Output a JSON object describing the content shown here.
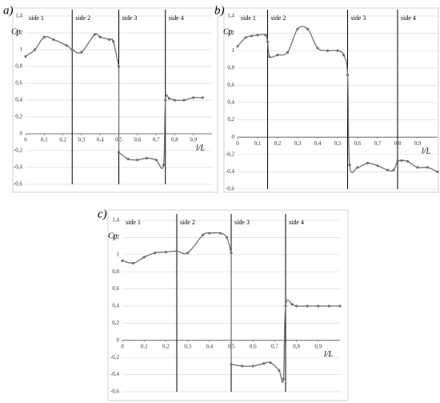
{
  "chart_data": [
    {
      "type": "line",
      "label": "a)",
      "y_label": "Cp",
      "x_label": "l/L",
      "xlim": [
        0,
        1
      ],
      "ylim": [
        -0.6,
        1.4
      ],
      "xticks": [
        0,
        {
          "value": 0.1,
          "label": "0,1"
        },
        {
          "value": 0.2,
          "label": "0,2"
        },
        {
          "value": 0.3,
          "label": "0,3"
        },
        {
          "value": 0.4,
          "label": "0,4"
        },
        {
          "value": 0.5,
          "label": "0,5"
        },
        {
          "value": 0.6,
          "label": "0,6"
        },
        {
          "value": 0.7,
          "label": "0,7"
        },
        {
          "value": 0.8,
          "label": "0,8"
        },
        {
          "value": 0.9,
          "label": "0,9"
        }
      ],
      "yticks": [
        {
          "value": -0.6,
          "label": "-0,6"
        },
        {
          "value": -0.4,
          "label": "-0,4"
        },
        {
          "value": -0.2,
          "label": "-0,2"
        },
        0,
        {
          "value": 0.2,
          "label": "0,2"
        },
        {
          "value": 0.4,
          "label": "0,4"
        },
        {
          "value": 0.6,
          "label": "0,6"
        },
        {
          "value": 0.8,
          "label": "0,8"
        },
        1,
        {
          "value": 1.2,
          "label": "1,2"
        },
        {
          "value": 1.4,
          "label": "1,4"
        }
      ],
      "grid": true,
      "dividers": [
        0.25,
        0.5,
        0.75
      ],
      "side_labels": [
        "side 1",
        "side 2",
        "side 3",
        "side 4"
      ],
      "series": [
        {
          "color": "#707070",
          "x": [
            0,
            0.05,
            0.1,
            0.15,
            0.22,
            0.25,
            0.3,
            0.37,
            0.4,
            0.45,
            0.47,
            0.5,
            0.5,
            0.55,
            0.6,
            0.65,
            0.7,
            0.74,
            0.75,
            0.77,
            0.8,
            0.85,
            0.9,
            0.95
          ],
          "values": [
            0.92,
            1.0,
            1.15,
            1.12,
            1.05,
            1.0,
            0.97,
            1.18,
            1.15,
            1.12,
            1.1,
            0.8,
            -0.22,
            -0.3,
            -0.31,
            -0.29,
            -0.31,
            -0.37,
            0.4,
            0.42,
            0.4,
            0.4,
            0.43,
            0.43
          ]
        }
      ]
    },
    {
      "type": "line",
      "label": "b)",
      "y_label": "Cp",
      "x_label": "l/L",
      "xlim": [
        0,
        1
      ],
      "ylim": [
        -0.6,
        1.4
      ],
      "xticks": [
        0,
        {
          "value": 0.1,
          "label": "0,1"
        },
        {
          "value": 0.2,
          "label": "0,2"
        },
        {
          "value": 0.3,
          "label": "0,3"
        },
        {
          "value": 0.4,
          "label": "0,4"
        },
        {
          "value": 0.5,
          "label": "0,5"
        },
        {
          "value": 0.6,
          "label": "0,6"
        },
        {
          "value": 0.7,
          "label": "0,7"
        },
        {
          "value": 0.8,
          "label": "0,8"
        },
        {
          "value": 0.9,
          "label": "0,9"
        }
      ],
      "yticks": [
        {
          "value": -0.6,
          "label": "-0,6"
        },
        {
          "value": -0.4,
          "label": "-0,4"
        },
        {
          "value": -0.2,
          "label": "-0,2"
        },
        0,
        {
          "value": 0.2,
          "label": "0,2"
        },
        {
          "value": 0.4,
          "label": "0,4"
        },
        {
          "value": 0.6,
          "label": "0,6"
        },
        {
          "value": 0.8,
          "label": "0,8"
        },
        1,
        {
          "value": 1.2,
          "label": "1,2"
        },
        {
          "value": 1.4,
          "label": "1,4"
        }
      ],
      "grid": true,
      "dividers": [
        0.15,
        0.55,
        0.8
      ],
      "side_labels": [
        "side 1",
        "side 2",
        "side 3",
        "side 4"
      ],
      "series": [
        {
          "color": "#707070",
          "x": [
            0,
            0.04,
            0.07,
            0.1,
            0.14,
            0.15,
            0.16,
            0.2,
            0.25,
            0.3,
            0.35,
            0.4,
            0.45,
            0.5,
            0.53,
            0.55,
            0.56,
            0.6,
            0.65,
            0.7,
            0.75,
            0.78,
            0.8,
            0.82,
            0.85,
            0.9,
            0.95,
            1.0
          ],
          "values": [
            1.05,
            1.15,
            1.17,
            1.18,
            1.18,
            1.1,
            0.93,
            0.95,
            0.98,
            1.25,
            1.25,
            1.03,
            1.0,
            1.0,
            0.95,
            0.72,
            -0.32,
            -0.35,
            -0.3,
            -0.33,
            -0.38,
            -0.38,
            -0.28,
            -0.27,
            -0.28,
            -0.35,
            -0.35,
            -0.4
          ]
        }
      ]
    },
    {
      "type": "line",
      "label": "c)",
      "y_label": "Cp",
      "x_label": "l/L",
      "xlim": [
        0,
        1
      ],
      "ylim": [
        -0.6,
        1.4
      ],
      "xticks": [
        0,
        {
          "value": 0.1,
          "label": "0,1"
        },
        {
          "value": 0.2,
          "label": "0,2"
        },
        {
          "value": 0.3,
          "label": "0,3"
        },
        {
          "value": 0.4,
          "label": "0,4"
        },
        {
          "value": 0.5,
          "label": "0,5"
        },
        {
          "value": 0.6,
          "label": "0,6"
        },
        {
          "value": 0.7,
          "label": "0,7"
        },
        {
          "value": 0.8,
          "label": "0,8"
        },
        {
          "value": 0.9,
          "label": "0,9"
        }
      ],
      "yticks": [
        {
          "value": -0.6,
          "label": "-0,6"
        },
        {
          "value": -0.4,
          "label": "-0,4"
        },
        {
          "value": -0.2,
          "label": "-0,2"
        },
        0,
        {
          "value": 0.2,
          "label": "0,2"
        },
        {
          "value": 0.4,
          "label": "0,4"
        },
        {
          "value": 0.6,
          "label": "0,6"
        },
        {
          "value": 0.8,
          "label": "0,8"
        },
        1,
        {
          "value": 1.2,
          "label": "1,2"
        },
        {
          "value": 1.4,
          "label": "1,4"
        }
      ],
      "grid": true,
      "dividers": [
        0.25,
        0.5,
        0.75
      ],
      "side_labels": [
        "side 1",
        "side 2",
        "side 3",
        "side 4"
      ],
      "series": [
        {
          "color": "#707070",
          "x": [
            0,
            0.05,
            0.1,
            0.15,
            0.2,
            0.25,
            0.3,
            0.37,
            0.4,
            0.45,
            0.48,
            0.5,
            0.5,
            0.55,
            0.6,
            0.65,
            0.68,
            0.72,
            0.74,
            0.75,
            0.78,
            0.8,
            0.85,
            0.9,
            0.95,
            1.0
          ],
          "values": [
            0.93,
            0.9,
            0.97,
            1.02,
            1.03,
            1.04,
            1.02,
            1.23,
            1.25,
            1.25,
            1.2,
            1.02,
            -0.28,
            -0.3,
            -0.3,
            -0.27,
            -0.26,
            -0.35,
            -0.45,
            0.4,
            0.42,
            0.4,
            0.4,
            0.4,
            0.4,
            0.4
          ]
        }
      ]
    }
  ]
}
